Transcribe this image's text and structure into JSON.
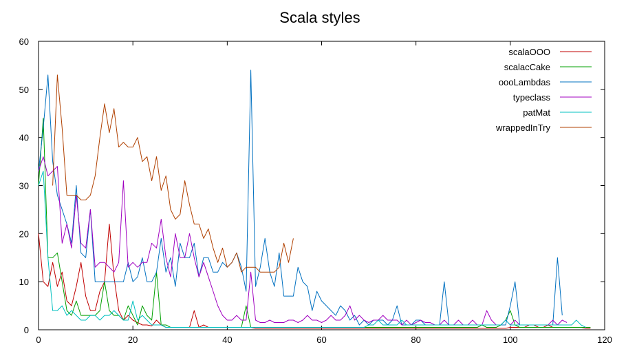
{
  "chart_data": {
    "type": "line",
    "title": "Scala styles",
    "xlabel": "",
    "ylabel": "",
    "xlim": [
      0,
      120
    ],
    "ylim": [
      0,
      60
    ],
    "xticks": [
      0,
      20,
      40,
      60,
      80,
      100,
      120
    ],
    "yticks": [
      0,
      10,
      20,
      30,
      40,
      50,
      60
    ],
    "grid": false,
    "legend_position": "top-right",
    "series": [
      {
        "name": "scalaOOO",
        "color": "#c00000",
        "x": [
          0,
          1,
          2,
          3,
          4,
          5,
          6,
          7,
          8,
          9,
          10,
          11,
          12,
          13,
          14,
          15,
          16,
          17,
          18,
          19,
          20,
          21,
          22,
          23,
          24,
          25,
          26,
          27,
          28,
          29,
          30,
          31,
          32,
          33,
          34,
          35,
          36,
          37,
          38,
          39,
          40,
          41,
          42,
          43,
          44,
          45,
          46,
          47,
          48,
          49,
          50,
          51,
          52,
          53,
          54,
          55,
          56,
          57,
          58,
          59,
          60,
          61,
          62,
          63,
          64,
          65,
          66,
          67,
          68,
          69,
          70,
          71,
          72,
          73,
          74,
          75,
          76,
          77,
          78,
          79,
          80,
          81,
          82,
          83,
          84,
          85,
          86,
          87,
          88,
          89,
          90,
          91,
          92,
          93,
          94,
          95,
          96,
          97,
          98,
          99,
          100,
          101,
          102,
          103,
          104,
          105,
          106,
          107,
          108,
          109,
          110,
          111,
          112,
          113,
          114,
          115,
          116,
          117
        ],
        "y": [
          20,
          10,
          9,
          14,
          9,
          12,
          6,
          5,
          9,
          14,
          7,
          4,
          4,
          8,
          10,
          22,
          11,
          4,
          2,
          3,
          2,
          1.5,
          1,
          1,
          0.8,
          2,
          1,
          0.5,
          0.5,
          0.5,
          0.5,
          0.5,
          0.5,
          4,
          0.5,
          1,
          0.5,
          0.5,
          0.5,
          0.5,
          0.5,
          0.5,
          0.5,
          0.5,
          0.5,
          0.5,
          0.3,
          0.3,
          0.3,
          0.3,
          0.3,
          0.3,
          0.3,
          0.3,
          0.3,
          0.3,
          0.3,
          0.3,
          0.3,
          0.3,
          0.3,
          0.3,
          0.3,
          0.3,
          0.3,
          0.3,
          0.3,
          0.3,
          0.3,
          0.3,
          0.3,
          0.3,
          0.3,
          0.3,
          0.3,
          0.3,
          0.3,
          0.3,
          0.3,
          0.3,
          0.3,
          0.3,
          0.3,
          0.3,
          0.3,
          0.3,
          0.3,
          0.3,
          0.3,
          0.3,
          0.3,
          0.3,
          0.3,
          0.3,
          0.3,
          0.3,
          0.3,
          0.3,
          0.3,
          0.3,
          0.5,
          0.5,
          0.5,
          0.5,
          1,
          1,
          0.5,
          0.5,
          1,
          0.5,
          0.5,
          0.5,
          0.5,
          0.5,
          0.5,
          0.5,
          0.3,
          0.3
        ]
      },
      {
        "name": "scalacCake",
        "color": "#00a000",
        "x": [
          0,
          1,
          2,
          3,
          4,
          5,
          6,
          7,
          8,
          9,
          10,
          11,
          12,
          13,
          14,
          15,
          16,
          17,
          18,
          19,
          20,
          21,
          22,
          23,
          24,
          25,
          26,
          27,
          28,
          29,
          30,
          31,
          32,
          33,
          34,
          35,
          36,
          37,
          38,
          39,
          40,
          41,
          42,
          43,
          44,
          45,
          46,
          47,
          48,
          49,
          50,
          51,
          52,
          53,
          54,
          55,
          56,
          57,
          58,
          59,
          60,
          61,
          62,
          63,
          64,
          65,
          66,
          67,
          68,
          69,
          70,
          71,
          72,
          73,
          74,
          75,
          76,
          77,
          78,
          79,
          80,
          81,
          82,
          83,
          84,
          85,
          86,
          87,
          88,
          89,
          90,
          91,
          92,
          93,
          94,
          95,
          96,
          97,
          98,
          99,
          100,
          101,
          102,
          103,
          104,
          105,
          106,
          107,
          108,
          109,
          110,
          111,
          112,
          113,
          114,
          115,
          116,
          117
        ],
        "y": [
          30,
          44,
          15,
          15,
          16,
          10,
          4,
          3,
          6,
          3,
          3,
          3,
          3,
          4,
          10,
          4,
          3,
          3,
          2,
          5,
          3,
          1,
          5,
          3,
          2,
          12,
          1,
          1,
          0.5,
          0.5,
          0.5,
          0.5,
          0.5,
          0.5,
          0.5,
          0.5,
          0.5,
          0.5,
          0.5,
          0.5,
          0.5,
          0.5,
          0.5,
          0.5,
          5,
          0.5,
          0.5,
          0.5,
          0.5,
          0.5,
          0.5,
          0.5,
          0.5,
          0.5,
          0.5,
          0.5,
          0.5,
          0.5,
          0.5,
          0.5,
          0.5,
          0.5,
          0.5,
          0.5,
          0.5,
          0.5,
          0.5,
          0.5,
          0.5,
          0.5,
          0.5,
          0.5,
          0.5,
          0.5,
          0.5,
          0.5,
          0.5,
          0.5,
          0.5,
          0.5,
          0.5,
          0.5,
          0.5,
          0.5,
          0.5,
          0.5,
          0.5,
          0.5,
          0.5,
          0.5,
          0.5,
          0.5,
          0.5,
          0.5,
          1,
          0.5,
          0.5,
          0.5,
          1,
          2,
          4,
          1,
          0.5,
          0.5,
          0.5,
          0.5,
          0.5,
          0.5,
          0.5,
          0.5,
          0.5,
          0.5,
          0.5,
          0.5,
          0.5,
          0.5,
          0.5,
          0.5
        ]
      },
      {
        "name": "oooLambdas",
        "color": "#0070c0",
        "x": [
          0,
          1,
          2,
          3,
          4,
          5,
          6,
          7,
          8,
          9,
          10,
          11,
          12,
          13,
          14,
          15,
          16,
          17,
          18,
          19,
          20,
          21,
          22,
          23,
          24,
          25,
          26,
          27,
          28,
          29,
          30,
          31,
          32,
          33,
          34,
          35,
          36,
          37,
          38,
          39,
          40,
          41,
          42,
          43,
          44,
          45,
          46,
          47,
          48,
          49,
          50,
          51,
          52,
          53,
          54,
          55,
          56,
          57,
          58,
          59,
          60,
          61,
          62,
          63,
          64,
          65,
          66,
          67,
          68,
          69,
          70,
          71,
          72,
          73,
          74,
          75,
          76,
          77,
          78,
          79,
          80,
          81,
          82,
          83,
          84,
          85,
          86,
          87,
          88,
          89,
          90,
          91,
          92,
          93,
          94,
          95,
          96,
          97,
          98,
          99,
          100,
          101,
          102,
          103,
          104,
          105,
          106,
          107,
          108,
          109,
          110,
          111
        ],
        "y": [
          33,
          42,
          53,
          35,
          28,
          25,
          22,
          18,
          30,
          16,
          15,
          25,
          10,
          10,
          10,
          10,
          10,
          10,
          10,
          14,
          10,
          11,
          15,
          10,
          10,
          12,
          19,
          12,
          15,
          9,
          18,
          15,
          15,
          18,
          11,
          15,
          15,
          12,
          12,
          14,
          13,
          14,
          16,
          13,
          8,
          54,
          9,
          13,
          19,
          12,
          9,
          16,
          7,
          7,
          7,
          13,
          10,
          9,
          4,
          8,
          6,
          5,
          4,
          3,
          5,
          4,
          2,
          3,
          1,
          2,
          1,
          2,
          2,
          2,
          1,
          2,
          5,
          1,
          1,
          1,
          2,
          2,
          1,
          1,
          1,
          1,
          10,
          1,
          1,
          1,
          1,
          1,
          1,
          1,
          1,
          1,
          1,
          1,
          1,
          1,
          5,
          10,
          1,
          1,
          1,
          1,
          1,
          1,
          1,
          1,
          15,
          3
        ]
      },
      {
        "name": "typeclass",
        "color": "#a000c0",
        "x": [
          0,
          1,
          2,
          3,
          4,
          5,
          6,
          7,
          8,
          9,
          10,
          11,
          12,
          13,
          14,
          15,
          16,
          17,
          18,
          19,
          20,
          21,
          22,
          23,
          24,
          25,
          26,
          27,
          28,
          29,
          30,
          31,
          32,
          33,
          34,
          35,
          36,
          37,
          38,
          39,
          40,
          41,
          42,
          43,
          44,
          45,
          46,
          47,
          48,
          49,
          50,
          51,
          52,
          53,
          54,
          55,
          56,
          57,
          58,
          59,
          60,
          61,
          62,
          63,
          64,
          65,
          66,
          67,
          68,
          69,
          70,
          71,
          72,
          73,
          74,
          75,
          76,
          77,
          78,
          79,
          80,
          81,
          82,
          83,
          84,
          85,
          86,
          87,
          88,
          89,
          90,
          91,
          92,
          93,
          94,
          95,
          96,
          97,
          98,
          99,
          100,
          101,
          102,
          103,
          104,
          105,
          106,
          107,
          108,
          109,
          110,
          111,
          112
        ],
        "y": [
          33,
          36,
          32,
          33,
          34,
          18,
          22,
          17,
          28,
          18,
          17,
          25,
          13,
          14,
          14,
          13,
          12,
          14,
          31,
          13,
          14,
          13,
          14,
          14,
          18,
          17,
          23,
          15,
          11,
          20,
          15,
          15,
          20,
          15,
          11,
          14,
          11,
          8,
          5,
          3,
          2,
          2,
          3,
          2,
          2,
          12,
          2,
          1.5,
          1.5,
          2,
          1.5,
          1.5,
          1.5,
          2,
          2,
          1.5,
          2,
          3,
          2,
          2,
          1.5,
          2,
          3,
          2,
          2,
          3,
          5,
          2,
          3,
          2,
          1.5,
          2,
          2,
          3,
          2,
          2,
          2,
          1,
          2,
          1,
          1.5,
          2,
          1.5,
          1.5,
          1,
          1,
          2,
          1,
          1,
          2,
          1,
          1,
          2,
          1,
          1,
          4,
          2,
          1,
          1,
          2,
          1,
          2,
          1,
          1,
          1,
          1,
          1,
          1,
          1,
          2,
          1,
          2,
          1.5
        ]
      },
      {
        "name": "patMat",
        "color": "#00c0c0",
        "x": [
          0,
          1,
          2,
          3,
          4,
          5,
          6,
          7,
          8,
          9,
          10,
          11,
          12,
          13,
          14,
          15,
          16,
          17,
          18,
          19,
          20,
          21,
          22,
          23,
          24,
          25,
          26,
          27,
          28,
          29,
          30,
          31,
          32,
          33,
          34,
          35,
          36,
          37,
          38,
          39,
          40,
          41,
          42,
          43,
          44,
          45,
          46,
          47,
          48,
          49,
          50,
          51,
          52,
          53,
          54,
          55,
          56,
          57,
          58,
          59,
          60,
          61,
          62,
          63,
          64,
          65,
          66,
          67,
          68,
          69,
          70,
          71,
          72,
          73,
          74,
          75,
          76,
          77,
          78,
          79,
          80,
          81,
          82,
          83,
          84,
          85,
          86,
          87,
          88,
          89,
          90,
          91,
          92,
          93,
          94,
          95,
          96,
          97,
          98,
          99,
          100,
          101,
          102,
          103,
          104,
          105,
          106,
          107,
          108,
          109,
          110,
          111,
          112,
          113,
          114,
          115,
          116
        ],
        "y": [
          30,
          33,
          15,
          4,
          4,
          5,
          3,
          4,
          3,
          2,
          2,
          3,
          3,
          2,
          3,
          3,
          4,
          3,
          2,
          2,
          6,
          2,
          3,
          2,
          1,
          1,
          1,
          0.5,
          0.5,
          0.5,
          0.5,
          0.5,
          0.5,
          0.5,
          0.5,
          0.5,
          0.5,
          0.5,
          0.5,
          0.5,
          0.5,
          0.5,
          0.5,
          0.5,
          0.5,
          0.5,
          0.5,
          0.5,
          0.5,
          0.5,
          0.5,
          0.5,
          0.5,
          0.5,
          0.5,
          0.5,
          0.5,
          0.5,
          0.5,
          0.5,
          0.5,
          0.5,
          0.5,
          0.5,
          0.5,
          0.5,
          0.5,
          0.5,
          0.5,
          0.5,
          1,
          1,
          2,
          1,
          1,
          1,
          1,
          2,
          1,
          1,
          1,
          1,
          1,
          1,
          1,
          1,
          1,
          1,
          1,
          1,
          1,
          1,
          1,
          1,
          1,
          1,
          1,
          1,
          1,
          2,
          1,
          1,
          1,
          1,
          1,
          1,
          1,
          1,
          1,
          1,
          1,
          1,
          1,
          1,
          2,
          1,
          0.5
        ]
      },
      {
        "name": "wrappedInTry",
        "color": "#b04000",
        "x": [
          3,
          4,
          5,
          6,
          7,
          8,
          9,
          10,
          11,
          12,
          13,
          14,
          15,
          16,
          17,
          18,
          19,
          20,
          21,
          22,
          23,
          24,
          25,
          26,
          27,
          28,
          29,
          30,
          31,
          32,
          33,
          34,
          35,
          36,
          37,
          38,
          39,
          40,
          41,
          42,
          43,
          44,
          45,
          46,
          47,
          48,
          49,
          50,
          51,
          52,
          53,
          54
        ],
        "y": [
          30,
          53,
          42,
          28,
          28,
          28,
          27,
          27,
          28,
          32,
          40,
          47,
          41,
          46,
          38,
          39,
          38,
          38,
          40,
          35,
          36,
          31,
          36,
          29,
          32,
          25,
          23,
          24,
          31,
          26,
          22,
          22,
          19,
          21,
          17,
          14,
          17,
          13,
          14,
          16,
          12,
          13,
          13,
          13,
          12,
          12,
          12,
          12,
          13,
          18,
          14,
          19
        ]
      }
    ]
  }
}
